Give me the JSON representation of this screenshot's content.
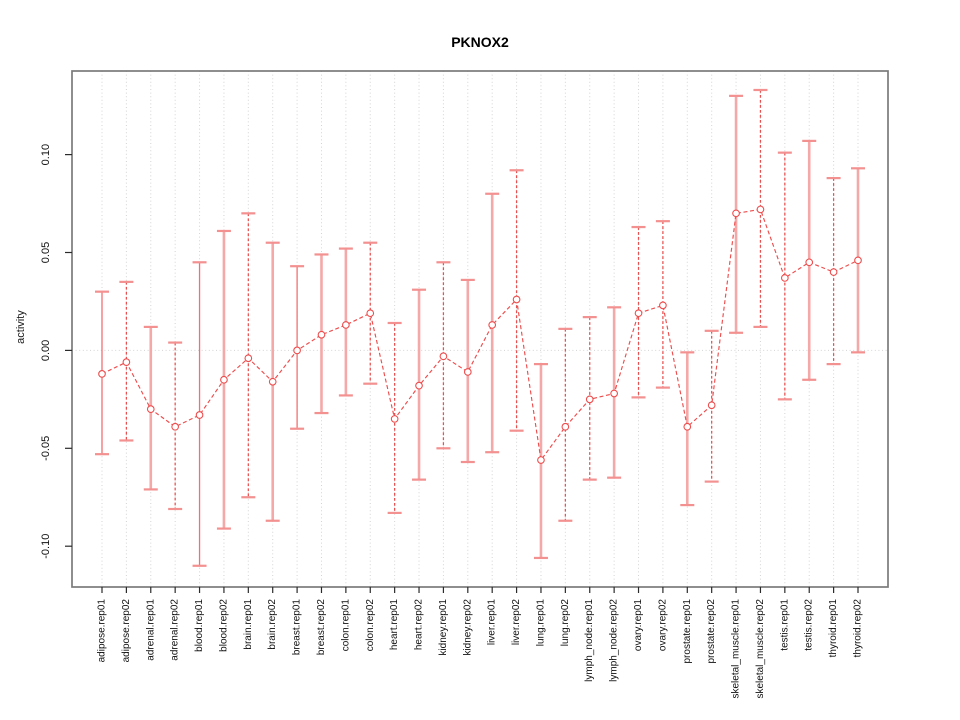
{
  "title": "PKNOX2",
  "chart_data": {
    "type": "line",
    "title": "PKNOX2",
    "xlabel": "",
    "ylabel": "activity",
    "ylim": [
      -0.121,
      0.143
    ],
    "grid": "vertical-dotted",
    "zero_line": true,
    "legend": "none",
    "y_ticks": [
      0.1,
      0.05,
      0.0,
      -0.05,
      -0.1
    ],
    "y_tick_labels": [
      "0.10",
      "0.05",
      "0.00",
      "-0.05",
      "-0.10"
    ],
    "categories": [
      "adipose.rep01",
      "adipose.rep02",
      "adrenal.rep01",
      "adrenal.rep02",
      "blood.rep01",
      "blood.rep02",
      "brain.rep01",
      "brain.rep02",
      "breast.rep01",
      "breast.rep02",
      "colon.rep01",
      "colon.rep02",
      "heart.rep01",
      "heart.rep02",
      "kidney.rep01",
      "kidney.rep02",
      "liver.rep01",
      "liver.rep02",
      "lung.rep01",
      "lung.rep02",
      "lymph_node.rep01",
      "lymph_node.rep02",
      "ovary.rep01",
      "ovary.rep02",
      "prostate.rep01",
      "prostate.rep02",
      "skeletal_muscle.rep01",
      "skeletal_muscle.rep02",
      "testis.rep01",
      "testis.rep02",
      "thyroid.rep01",
      "thyroid.rep02"
    ],
    "series": [
      {
        "name": "activity",
        "values": [
          -0.012,
          -0.006,
          -0.03,
          -0.039,
          -0.033,
          -0.015,
          -0.004,
          -0.016,
          0.0,
          0.008,
          0.013,
          0.019,
          -0.035,
          -0.018,
          -0.003,
          -0.011,
          0.013,
          0.026,
          -0.056,
          -0.039,
          -0.025,
          -0.022,
          0.019,
          0.023,
          -0.039,
          -0.028,
          0.07,
          0.072,
          0.037,
          0.045,
          0.04,
          0.046
        ],
        "error_upper": [
          0.03,
          0.035,
          0.012,
          0.004,
          0.045,
          0.061,
          0.07,
          0.055,
          0.043,
          0.049,
          0.052,
          0.055,
          0.014,
          0.031,
          0.045,
          0.036,
          0.08,
          0.092,
          -0.007,
          0.011,
          0.017,
          0.022,
          0.063,
          0.066,
          -0.001,
          0.01,
          0.13,
          0.133,
          0.101,
          0.107,
          0.088,
          0.093
        ],
        "error_lower": [
          -0.053,
          -0.046,
          -0.071,
          -0.081,
          -0.11,
          -0.091,
          -0.075,
          -0.087,
          -0.04,
          -0.032,
          -0.023,
          -0.017,
          -0.083,
          -0.066,
          -0.05,
          -0.057,
          -0.052,
          -0.041,
          -0.106,
          -0.087,
          -0.066,
          -0.065,
          -0.024,
          -0.019,
          -0.079,
          -0.067,
          0.009,
          0.012,
          -0.025,
          -0.015,
          -0.007,
          -0.001
        ]
      }
    ],
    "bar_styles": [
      "thin",
      "dashed",
      "thick",
      "dashed",
      "thin",
      "thick",
      "dashed",
      "thick",
      "thin",
      "thick",
      "thick",
      "dashed",
      "dashed",
      "thick",
      "dashed",
      "thick",
      "thick",
      "dashed",
      "thick",
      "dashed",
      "dashed",
      "thick",
      "dashed",
      "dashed",
      "thick",
      "dashed",
      "thick",
      "dashed",
      "dashed",
      "thick",
      "dashed",
      "thick"
    ],
    "colors": {
      "line": "#ee4d4d",
      "marker_stroke": "#ee4d4d",
      "marker_fill": "#ffffff",
      "bar_thick": "#f5a8a8",
      "bar_thin": "#f17070",
      "bar_dashed": "#e94f4f",
      "cap": "#f39090",
      "grid": "#d4d4d4",
      "frame": "#7a7a7a",
      "tick": "#2b2b2b",
      "text": "#111111"
    }
  }
}
